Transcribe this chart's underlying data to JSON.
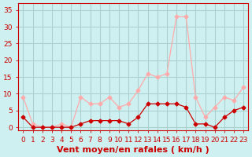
{
  "hours": [
    0,
    1,
    2,
    3,
    4,
    5,
    6,
    7,
    8,
    9,
    10,
    11,
    12,
    13,
    14,
    15,
    16,
    17,
    18,
    19,
    20,
    21,
    22,
    23
  ],
  "wind_avg": [
    3,
    0,
    0,
    0,
    0,
    0,
    1,
    2,
    2,
    2,
    2,
    1,
    3,
    7,
    7,
    7,
    7,
    6,
    1,
    1,
    0,
    3,
    5,
    6
  ],
  "wind_gust": [
    9,
    1,
    0,
    0,
    1,
    0,
    9,
    7,
    7,
    9,
    6,
    7,
    11,
    16,
    15,
    16,
    33,
    33,
    9,
    3,
    6,
    9,
    8,
    12
  ],
  "bg_color": "#cff0f0",
  "grid_color": "#aad0d0",
  "line_avg_color": "#cc0000",
  "line_gust_color": "#ffaaaa",
  "xlabel": "Vent moyen/en rafales ( km/h )",
  "ylabel_values": [
    0,
    5,
    10,
    15,
    20,
    25,
    30,
    35
  ],
  "ylim": [
    -1,
    37
  ],
  "xlim": [
    -0.5,
    23.5
  ],
  "xlabel_fontsize": 8,
  "tick_fontsize": 6.5
}
